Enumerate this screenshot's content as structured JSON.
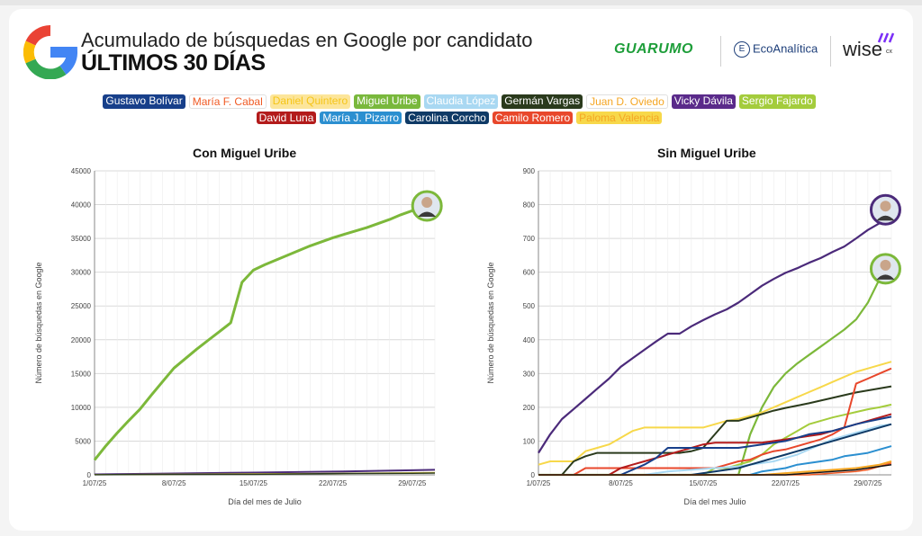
{
  "header": {
    "title_line1": "Acumulado de búsquedas en Google por candidato",
    "title_line2": "ÚLTIMOS 30 DÍAS",
    "brand_guarumo": "GUARUMO",
    "brand_eco": "EcoAnalítica",
    "brand_eco_icon": "E",
    "brand_wise": "wise",
    "brand_wise_suffix": "cx"
  },
  "legend": {
    "row1": [
      {
        "label": "Gustavo Bolívar",
        "color": "#173f8a",
        "text": "#ffffff"
      },
      {
        "label": "María F. Cabal",
        "color": "#ffffff",
        "text": "#f05a24"
      },
      {
        "label": "Daniel Quintero",
        "color": "#fce59a",
        "text": "#f5c518"
      },
      {
        "label": "Miguel Uribe",
        "color": "#79b83c",
        "text": "#ffffff"
      },
      {
        "label": "Claudia López",
        "color": "#a9d8f2",
        "text": "#ffffff"
      },
      {
        "label": "Germán Vargas",
        "color": "#2a3a1c",
        "text": "#ffffff"
      },
      {
        "label": "Juan D. Oviedo",
        "color": "#ffffff",
        "text": "#f5a623"
      },
      {
        "label": "Vicky Dávila",
        "color": "#5a2a8a",
        "text": "#ffffff"
      },
      {
        "label": "Sergio Fajardo",
        "color": "#a4cc3c",
        "text": "#ffffff"
      }
    ],
    "row2": [
      {
        "label": "David Luna",
        "color": "#b31b1b",
        "text": "#ffffff"
      },
      {
        "label": "María J. Pizarro",
        "color": "#2b8fd0",
        "text": "#ffffff"
      },
      {
        "label": "Carolina Corcho",
        "color": "#0f3a66",
        "text": "#ffffff"
      },
      {
        "label": "Camilo Romero",
        "color": "#e8472b",
        "text": "#ffffff"
      },
      {
        "label": "Paloma Valencia",
        "color": "#f7d84a",
        "text": "#f5a623"
      }
    ]
  },
  "chart_data": [
    {
      "type": "line",
      "title": "Con Miguel Uribe",
      "xlabel": "Día del mes de Julio",
      "ylabel": "Número de búsquedas en Google",
      "ylim": [
        0,
        45000
      ],
      "yticks": [
        "0",
        "5000",
        "10000",
        "15000",
        "20000",
        "25000",
        "30000",
        "35000",
        "40000",
        "45000"
      ],
      "xlim": [
        1,
        31
      ],
      "xticks": [
        {
          "x": 1,
          "label": "1/07/25"
        },
        {
          "x": 8,
          "label": "8/07/25"
        },
        {
          "x": 15,
          "label": "15/07/25"
        },
        {
          "x": 22,
          "label": "22/07/25"
        },
        {
          "x": 29,
          "label": "29/07/25"
        }
      ],
      "grid": true,
      "series": [
        {
          "name": "Miguel Uribe",
          "color": "#7cb83a",
          "width": 3,
          "x": [
            1,
            2,
            3,
            4,
            5,
            6,
            7,
            8,
            9,
            10,
            11,
            12,
            13,
            14,
            15,
            16,
            17,
            18,
            19,
            20,
            21,
            22,
            23,
            24,
            25,
            26,
            27,
            28,
            29,
            30
          ],
          "y": [
            2200,
            4300,
            6200,
            8000,
            9700,
            11800,
            13800,
            15800,
            17200,
            18600,
            19900,
            21200,
            22500,
            28500,
            30300,
            31100,
            31800,
            32500,
            33200,
            33900,
            34500,
            35100,
            35600,
            36100,
            36600,
            37200,
            37800,
            38500,
            39100,
            39600
          ]
        },
        {
          "name": "Vicky Dávila",
          "color": "#4b2a7a",
          "width": 2,
          "x": [
            1,
            8,
            15,
            22,
            29,
            31
          ],
          "y": [
            60,
            200,
            330,
            480,
            680,
            740
          ]
        },
        {
          "name": "Paloma Valencia",
          "color": "#f7d84a",
          "width": 1.5,
          "x": [
            1,
            8,
            15,
            22,
            29,
            31
          ],
          "y": [
            20,
            80,
            140,
            200,
            300,
            330
          ]
        },
        {
          "name": "Germán Vargas",
          "color": "#2a3a1c",
          "width": 1.5,
          "x": [
            1,
            8,
            15,
            22,
            29,
            31
          ],
          "y": [
            10,
            60,
            80,
            180,
            240,
            260
          ]
        }
      ],
      "avatar": {
        "series": "Miguel Uribe",
        "x": 30.3,
        "y": 39800
      }
    },
    {
      "type": "line",
      "title": "Sin Miguel Uribe",
      "xlabel": "Día del mes Julio",
      "ylabel": "Número de búsquedas en Google",
      "ylim": [
        0,
        900
      ],
      "yticks": [
        "0",
        "100",
        "200",
        "300",
        "400",
        "500",
        "600",
        "700",
        "800",
        "900"
      ],
      "xlim": [
        1,
        31
      ],
      "xticks": [
        {
          "x": 1,
          "label": "1/07/25"
        },
        {
          "x": 8,
          "label": "8/07/25"
        },
        {
          "x": 15,
          "label": "15/07/25"
        },
        {
          "x": 22,
          "label": "22/07/25"
        },
        {
          "x": 29,
          "label": "29/07/25"
        }
      ],
      "grid": true,
      "series": [
        {
          "name": "Vicky Dávila",
          "color": "#4b2a7a",
          "width": 2.2,
          "x": [
            1,
            2,
            3,
            4,
            5,
            6,
            7,
            8,
            9,
            10,
            11,
            12,
            13,
            14,
            15,
            16,
            17,
            18,
            19,
            20,
            21,
            22,
            23,
            24,
            25,
            26,
            27,
            28,
            29,
            30
          ],
          "y": [
            65,
            120,
            165,
            195,
            225,
            255,
            285,
            320,
            345,
            370,
            395,
            418,
            418,
            440,
            458,
            475,
            490,
            510,
            535,
            560,
            580,
            598,
            612,
            628,
            642,
            660,
            676,
            700,
            725,
            745
          ]
        },
        {
          "name": "Miguel Uribe",
          "color": "#7cb83a",
          "width": 2.2,
          "x": [
            1,
            18,
            19,
            20,
            21,
            22,
            23,
            24,
            25,
            26,
            27,
            28,
            29,
            30
          ],
          "y": [
            0,
            0,
            120,
            200,
            260,
            300,
            330,
            355,
            380,
            405,
            430,
            460,
            510,
            580
          ]
        },
        {
          "name": "Paloma Valencia",
          "color": "#f7d84a",
          "width": 2,
          "x": [
            1,
            2,
            3,
            4,
            5,
            6,
            7,
            8,
            9,
            10,
            11,
            12,
            13,
            14,
            15,
            16,
            17,
            18,
            19,
            20,
            21,
            22,
            23,
            24,
            25,
            26,
            27,
            28,
            29,
            30,
            31
          ],
          "y": [
            30,
            40,
            40,
            40,
            70,
            80,
            90,
            110,
            130,
            140,
            140,
            140,
            140,
            140,
            140,
            150,
            160,
            165,
            175,
            185,
            200,
            215,
            230,
            245,
            260,
            275,
            290,
            305,
            315,
            325,
            335
          ]
        },
        {
          "name": "Germán Vargas",
          "color": "#2a3a1c",
          "width": 2,
          "x": [
            1,
            3,
            4,
            5,
            6,
            7,
            8,
            9,
            10,
            11,
            12,
            13,
            14,
            15,
            16,
            17,
            18,
            19,
            20,
            21,
            22,
            23,
            24,
            25,
            26,
            27,
            28,
            29,
            30,
            31
          ],
          "y": [
            0,
            0,
            40,
            55,
            65,
            65,
            65,
            65,
            65,
            65,
            65,
            65,
            70,
            80,
            120,
            160,
            160,
            170,
            180,
            190,
            198,
            205,
            212,
            220,
            228,
            236,
            244,
            250,
            256,
            262
          ]
        },
        {
          "name": "Sergio Fajardo",
          "color": "#a4cc3c",
          "width": 2,
          "x": [
            1,
            8,
            12,
            15,
            16,
            17,
            18,
            19,
            20,
            21,
            22,
            23,
            24,
            25,
            26,
            27,
            28,
            29,
            30,
            31
          ],
          "y": [
            0,
            0,
            0,
            0,
            20,
            20,
            30,
            40,
            60,
            90,
            110,
            130,
            150,
            160,
            170,
            178,
            186,
            194,
            200,
            208
          ]
        },
        {
          "name": "Camilo Romero",
          "color": "#e8472b",
          "width": 2,
          "x": [
            1,
            4,
            5,
            6,
            7,
            8,
            9,
            10,
            11,
            12,
            13,
            14,
            15,
            16,
            17,
            18,
            19,
            20,
            21,
            22,
            23,
            24,
            25,
            26,
            27,
            28,
            29,
            30,
            31
          ],
          "y": [
            0,
            0,
            20,
            20,
            20,
            20,
            20,
            20,
            20,
            20,
            20,
            20,
            20,
            20,
            30,
            40,
            45,
            60,
            70,
            75,
            85,
            95,
            105,
            120,
            140,
            270,
            285,
            300,
            315
          ]
        },
        {
          "name": "David Luna",
          "color": "#b31b1b",
          "width": 2,
          "x": [
            1,
            7,
            8,
            9,
            10,
            11,
            12,
            13,
            14,
            15,
            16,
            17,
            18,
            19,
            20,
            21,
            22,
            23,
            24,
            25,
            26,
            27,
            28,
            29,
            30,
            31
          ],
          "y": [
            0,
            0,
            20,
            30,
            40,
            50,
            60,
            70,
            80,
            90,
            95,
            95,
            95,
            95,
            95,
            100,
            105,
            110,
            115,
            120,
            130,
            140,
            150,
            160,
            170,
            180
          ]
        },
        {
          "name": "Gustavo Bolívar",
          "color": "#173f8a",
          "width": 2,
          "x": [
            1,
            8,
            10,
            11,
            12,
            13,
            14,
            15,
            16,
            17,
            18,
            19,
            20,
            21,
            22,
            23,
            24,
            25,
            26,
            27,
            28,
            29,
            30,
            31
          ],
          "y": [
            0,
            0,
            30,
            50,
            80,
            80,
            80,
            80,
            80,
            80,
            80,
            85,
            90,
            95,
            100,
            110,
            120,
            125,
            130,
            140,
            150,
            158,
            165,
            172
          ]
        },
        {
          "name": "Claudia López",
          "color": "#a9d8f2",
          "width": 2,
          "x": [
            1,
            10,
            12,
            14,
            16,
            18,
            19,
            20,
            21,
            22,
            23,
            24,
            25,
            26,
            27,
            28,
            29,
            30,
            31
          ],
          "y": [
            0,
            0,
            10,
            15,
            20,
            25,
            30,
            35,
            40,
            50,
            60,
            75,
            90,
            105,
            115,
            125,
            135,
            145,
            150
          ]
        },
        {
          "name": "Carolina Corcho",
          "color": "#0f3a66",
          "width": 2,
          "x": [
            1,
            14,
            16,
            18,
            19,
            20,
            21,
            22,
            23,
            24,
            25,
            26,
            27,
            28,
            29,
            30,
            31
          ],
          "y": [
            0,
            0,
            10,
            20,
            30,
            40,
            50,
            60,
            70,
            80,
            90,
            100,
            110,
            120,
            130,
            140,
            150
          ]
        },
        {
          "name": "María J. Pizarro",
          "color": "#2b8fd0",
          "width": 2,
          "x": [
            1,
            19,
            20,
            21,
            22,
            23,
            24,
            25,
            26,
            27,
            28,
            29,
            30,
            31
          ],
          "y": [
            0,
            0,
            10,
            15,
            20,
            30,
            35,
            40,
            45,
            55,
            60,
            65,
            75,
            85
          ]
        },
        {
          "name": "Juan D. Oviedo",
          "color": "#f5a623",
          "width": 2,
          "x": [
            1,
            20,
            22,
            24,
            26,
            28,
            29,
            30,
            31
          ],
          "y": [
            0,
            0,
            5,
            10,
            15,
            20,
            25,
            30,
            40
          ]
        },
        {
          "name": "María F. Cabal",
          "color": "#f05a24",
          "width": 1.5,
          "x": [
            1,
            24,
            26,
            28,
            29,
            30,
            31
          ],
          "y": [
            0,
            0,
            5,
            10,
            15,
            25,
            35
          ]
        },
        {
          "name": "Daniel Quintero",
          "color": "#111111",
          "width": 1.5,
          "x": [
            1,
            22,
            24,
            26,
            28,
            30,
            31
          ],
          "y": [
            0,
            0,
            5,
            10,
            15,
            25,
            30
          ]
        }
      ],
      "avatars": [
        {
          "series": "Vicky Dávila",
          "x": 30.5,
          "y": 785
        },
        {
          "series": "Miguel Uribe",
          "x": 30.5,
          "y": 610
        }
      ]
    }
  ]
}
